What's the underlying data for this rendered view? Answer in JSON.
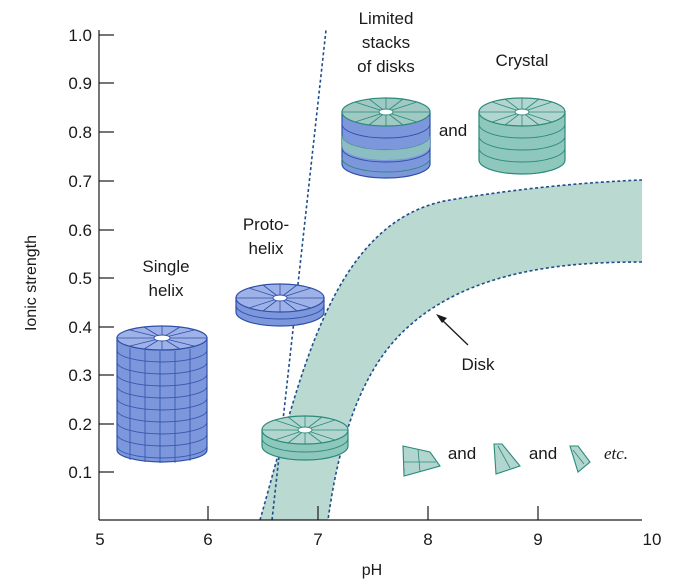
{
  "axes": {
    "x_label": "pH",
    "y_label": "Ionic strength",
    "x_ticks": [
      "5",
      "6",
      "7",
      "8",
      "9",
      "10"
    ],
    "y_ticks": [
      "0.1",
      "0.2",
      "0.3",
      "0.4",
      "0.5",
      "0.6",
      "0.7",
      "0.8",
      "0.9",
      "1.0"
    ]
  },
  "labels": {
    "limited_stacks": [
      "Limited",
      "stacks",
      "of disks"
    ],
    "crystal": "Crystal",
    "and_top": "and",
    "proto_helix": [
      "Proto-",
      "helix"
    ],
    "single_helix": [
      "Single",
      "helix"
    ],
    "disk": "Disk",
    "and_1": "and",
    "and_2": "and",
    "etc": "etc."
  },
  "colors": {
    "helix_blue": "#7d97dc",
    "helix_edge": "#2e4fa8",
    "disk_green": "#b2d6cf",
    "disk_edge": "#2a8a7a",
    "region_fill": "#b9d9d1",
    "boundary": "#1f4e8a"
  }
}
